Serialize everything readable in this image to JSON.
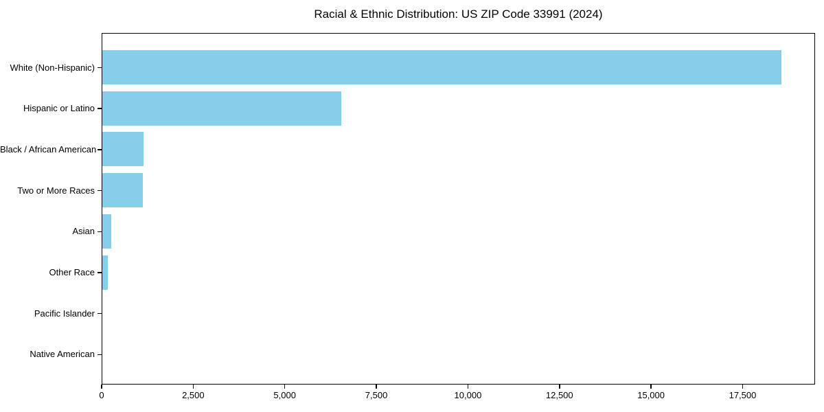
{
  "chart_data": {
    "type": "bar",
    "orientation": "horizontal",
    "title": "Racial & Ethnic Distribution: US ZIP Code 33991 (2024)",
    "categories": [
      "White (Non-Hispanic)",
      "Hispanic or Latino",
      "Black / African American",
      "Two or More Races",
      "Asian",
      "Other Race",
      "Pacific Islander",
      "Native American"
    ],
    "values": [
      18550,
      6520,
      1130,
      1110,
      240,
      150,
      0,
      0
    ],
    "xlabel": "",
    "ylabel": "",
    "xlim": [
      0,
      19478
    ],
    "x_ticks": [
      0,
      2500,
      5000,
      7500,
      10000,
      12500,
      15000,
      17500
    ],
    "x_tick_labels": [
      "0",
      "2,500",
      "5,000",
      "7,500",
      "10,000",
      "12,500",
      "15,000",
      "17,500"
    ],
    "bar_color": "#87CEEB",
    "spine_color": "#000000",
    "text_color": "#000000",
    "background": "#FFFFFF",
    "grid": false,
    "legend": null
  }
}
